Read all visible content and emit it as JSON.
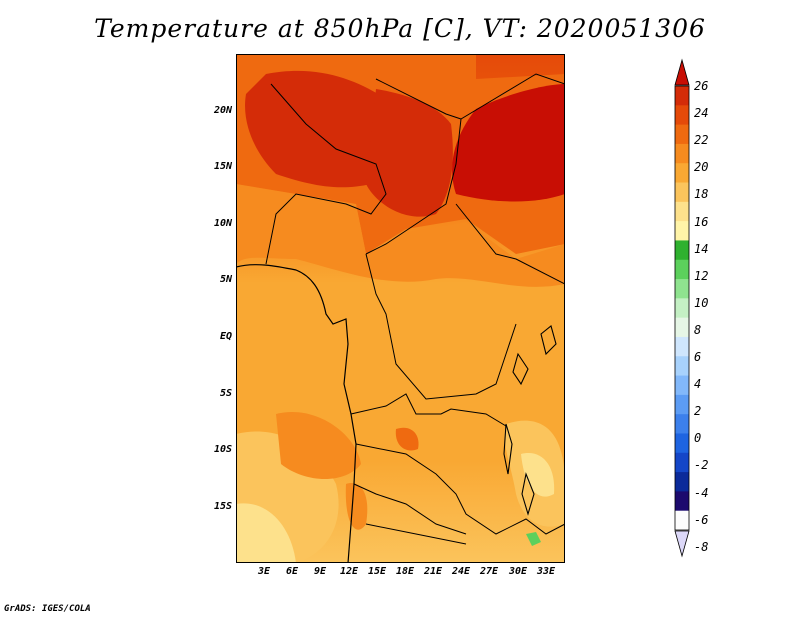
{
  "title": "Temperature at 850hPa [C], VT: 2020051306",
  "map": {
    "lat_ticks": [
      "20N",
      "15N",
      "10N",
      "5N",
      "EQ",
      "5S",
      "10S",
      "15S"
    ],
    "lon_ticks": [
      "3E",
      "6E",
      "9E",
      "12E",
      "15E",
      "18E",
      "21E",
      "24E",
      "27E",
      "30E",
      "33E"
    ]
  },
  "colorbar": {
    "labels": [
      "26",
      "24",
      "22",
      "20",
      "18",
      "16",
      "14",
      "12",
      "10",
      "8",
      "6",
      "4",
      "2",
      "0",
      "-2",
      "-4",
      "-6",
      "-8"
    ],
    "colors": [
      "#fdfdfd",
      "#1c0a6e",
      "#0b2a9a",
      "#1446c8",
      "#1e64e1",
      "#3c80ec",
      "#5c9cf4",
      "#82b8fa",
      "#a8d2fc",
      "#cfe6fd",
      "#e6f6e6",
      "#c4f0c4",
      "#8fe38f",
      "#5cd05c",
      "#2fb12f",
      "#fff4a8",
      "#fde18c",
      "#fbc45c",
      "#f9a833",
      "#f68b1f",
      "#ef6a10",
      "#e54a09",
      "#d42c08",
      "#c80e04"
    ]
  },
  "credit": "GrADS: IGES/COLA"
}
